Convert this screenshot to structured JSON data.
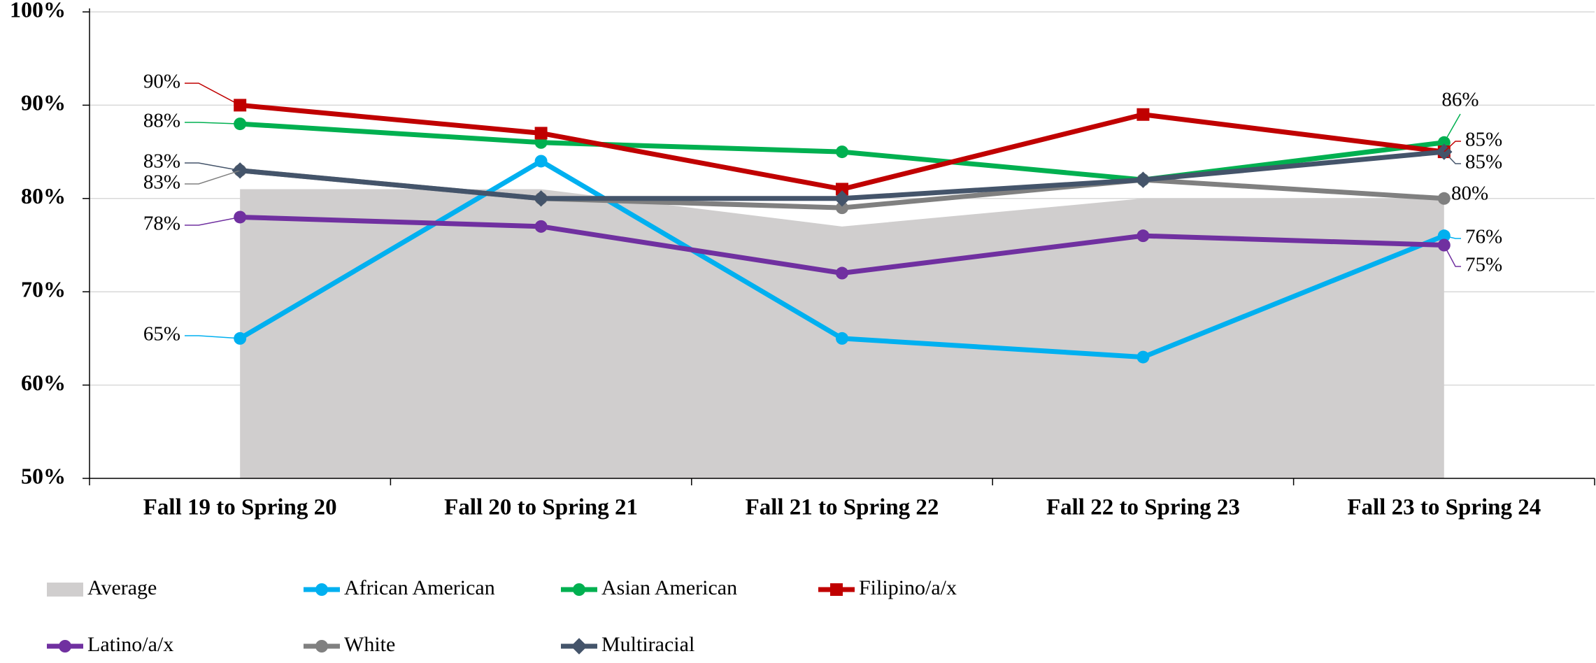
{
  "chart_data": {
    "type": "line",
    "categories": [
      "Fall 19 to Spring 20",
      "Fall 20 to Spring 21",
      "Fall 21 to Spring 22",
      "Fall 22 to Spring 23",
      "Fall 23 to Spring 24"
    ],
    "ylim": [
      50,
      100
    ],
    "yticks": [
      {
        "value": 50,
        "label": "50%"
      },
      {
        "value": 60,
        "label": "60%"
      },
      {
        "value": 70,
        "label": "70%"
      },
      {
        "value": 80,
        "label": "80%"
      },
      {
        "value": 90,
        "label": "90%"
      },
      {
        "value": 100,
        "label": "100%"
      }
    ],
    "grid": true,
    "legend": "bottom",
    "series": [
      {
        "name": "Average",
        "type": "area",
        "color": "#d0cece",
        "values": [
          81,
          81,
          77,
          80,
          80
        ]
      },
      {
        "name": "African American",
        "type": "line",
        "marker": "circle",
        "color": "#00b0f0",
        "values": [
          65,
          84,
          65,
          63,
          76
        ],
        "value_labels": [
          "65%",
          null,
          null,
          null,
          "76%"
        ]
      },
      {
        "name": "Asian American",
        "type": "line",
        "marker": "circle",
        "color": "#00b050",
        "values": [
          88,
          86,
          85,
          82,
          86
        ],
        "value_labels": [
          "88%",
          null,
          null,
          null,
          "86%"
        ]
      },
      {
        "name": "Filipino/a/x",
        "type": "line",
        "marker": "square",
        "color": "#c00000",
        "values": [
          90,
          87,
          81,
          89,
          85
        ],
        "value_labels": [
          "90%",
          null,
          null,
          null,
          "85%"
        ]
      },
      {
        "name": "Latino/a/x",
        "type": "line",
        "marker": "circle",
        "color": "#7030a0",
        "values": [
          78,
          77,
          72,
          76,
          75
        ],
        "value_labels": [
          "78%",
          null,
          null,
          null,
          "75%"
        ]
      },
      {
        "name": "White",
        "type": "line",
        "marker": "circle",
        "color": "#808080",
        "values": [
          83,
          80,
          79,
          82,
          80
        ],
        "value_labels": [
          "83%",
          null,
          null,
          null,
          "80%"
        ]
      },
      {
        "name": "Multiracial",
        "type": "line",
        "marker": "diamond",
        "color": "#44546a",
        "values": [
          83,
          80,
          80,
          82,
          85
        ],
        "value_labels": [
          "83%",
          null,
          null,
          null,
          "85%"
        ]
      }
    ]
  }
}
